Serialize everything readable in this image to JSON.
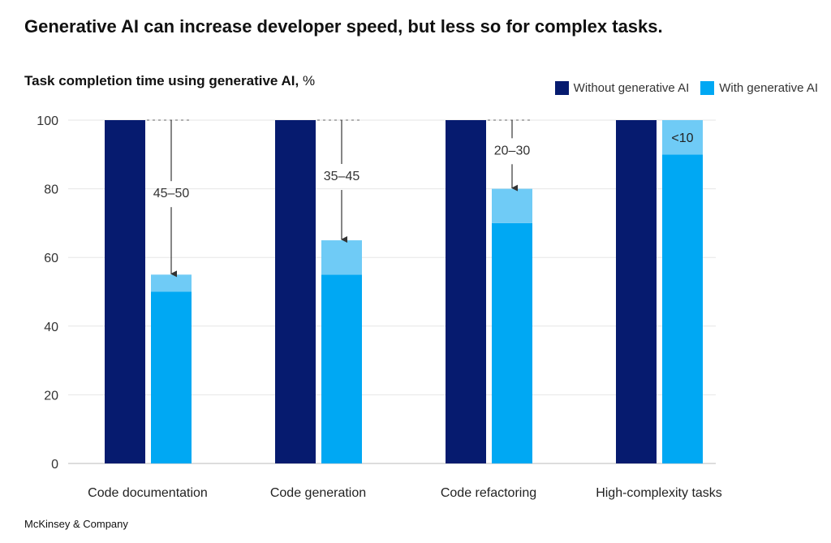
{
  "title": "Generative AI can increase developer speed, but less so for complex tasks.",
  "source": "McKinsey & Company",
  "colors": {
    "without": "#061B6F",
    "with": "#00A8F3",
    "range": "#6FCBF6"
  },
  "chart_data": {
    "type": "bar",
    "title": "Task completion time using generative AI,",
    "unit": "%",
    "ylim": [
      0,
      100
    ],
    "yticks": [
      0,
      20,
      40,
      60,
      80,
      100
    ],
    "grid": true,
    "legend": "top-right",
    "categories": [
      "Code documentation",
      "Code generation",
      "Code refactoring",
      "High-complexity tasks"
    ],
    "series": [
      {
        "name": "Without generative AI",
        "values": [
          100,
          100,
          100,
          100
        ]
      },
      {
        "name": "With generative AI",
        "low": [
          50,
          55,
          70,
          90
        ],
        "high": [
          55,
          65,
          80,
          100
        ]
      }
    ],
    "annotations": [
      "45–50",
      "35–45",
      "20–30",
      "<10"
    ]
  }
}
